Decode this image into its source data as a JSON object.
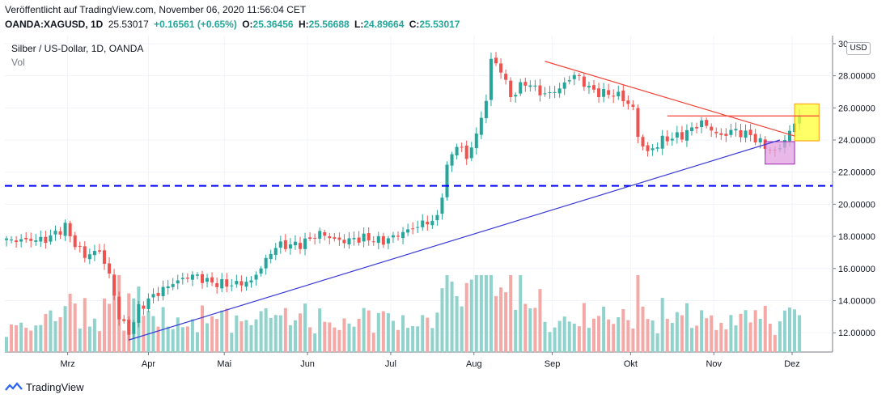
{
  "header": {
    "published": "Veröffentlicht auf TradingView.com, November 06, 2020 11:56:04 CET",
    "symbol": "OANDA:XAGUSD, 1D",
    "last": "25.53017",
    "change": "+0.16561 (+0.65%)",
    "open_label": "O:",
    "open": "25.36456",
    "high_label": "H:",
    "high": "25.56688",
    "low_label": "L:",
    "low": "24.89664",
    "close_label": "C:",
    "close": "25.53017"
  },
  "legend": {
    "title": "Silber / US-Dollar, 1D, OANDA",
    "volume": "Vol"
  },
  "currency_badge": "USD",
  "footer": {
    "brand": "TradingView"
  },
  "colors": {
    "up": "#26a69a",
    "down": "#ef5350",
    "up_vol": "#8fd3cc",
    "down_vol": "#f5a9a7",
    "support": "#0000ff",
    "trend_up": "#3a3ad6",
    "trend_down": "#f44336",
    "highlight_yellow": "#ffff33",
    "highlight_pink": "#e3a0e0"
  },
  "chart_data": {
    "type": "candlestick",
    "y_axis": {
      "min": 10.8,
      "max": 30.5,
      "ticks": [
        "12.00000",
        "14.00000",
        "16.00000",
        "18.00000",
        "20.00000",
        "22.00000",
        "24.00000",
        "26.00000",
        "28.00000",
        "30"
      ]
    },
    "x_axis": {
      "labels": [
        "Mrz",
        "Apr",
        "Mai",
        "Jun",
        "Jul",
        "Aug",
        "Sep",
        "Okt",
        "Nov",
        "Dez"
      ]
    },
    "price_waypoints": [
      [
        0,
        17.75
      ],
      [
        8,
        17.8
      ],
      [
        12,
        18.6
      ],
      [
        14,
        17.5
      ],
      [
        16,
        16.8
      ],
      [
        19,
        17.1
      ],
      [
        21,
        15.6
      ],
      [
        23,
        13.0
      ],
      [
        25,
        12.0
      ],
      [
        27,
        13.5
      ],
      [
        30,
        14.3
      ],
      [
        34,
        15.1
      ],
      [
        38,
        15.6
      ],
      [
        42,
        15.1
      ],
      [
        46,
        15.0
      ],
      [
        50,
        15.2
      ],
      [
        55,
        17.4
      ],
      [
        60,
        17.5
      ],
      [
        64,
        18.2
      ],
      [
        68,
        17.7
      ],
      [
        73,
        17.9
      ],
      [
        77,
        17.7
      ],
      [
        80,
        18.1
      ],
      [
        85,
        18.8
      ],
      [
        88,
        19.1
      ],
      [
        90,
        22.3
      ],
      [
        92,
        23.8
      ],
      [
        94,
        22.9
      ],
      [
        96,
        24.3
      ],
      [
        98,
        26.5
      ],
      [
        99,
        29.0
      ],
      [
        101,
        28.4
      ],
      [
        103,
        26.7
      ],
      [
        106,
        27.6
      ],
      [
        110,
        26.8
      ],
      [
        113,
        27.2
      ],
      [
        116,
        28.1
      ],
      [
        120,
        27.0
      ],
      [
        125,
        26.8
      ],
      [
        128,
        26.0
      ],
      [
        129,
        24.2
      ],
      [
        131,
        23.2
      ],
      [
        134,
        24.0
      ],
      [
        138,
        24.3
      ],
      [
        142,
        25.1
      ],
      [
        146,
        24.2
      ],
      [
        148,
        24.6
      ],
      [
        152,
        24.3
      ],
      [
        155,
        23.6
      ],
      [
        157,
        23.2
      ],
      [
        159,
        24.0
      ],
      [
        162,
        25.53
      ]
    ],
    "volume_range": [
      0.8,
      6.9
    ],
    "lines": [
      {
        "name": "support-horizontal",
        "style": "dashed",
        "y": 21.15
      },
      {
        "name": "rising-trendline",
        "from": [
          25,
          11.55
        ],
        "to": [
          158,
          24.0
        ]
      },
      {
        "name": "falling-trendline",
        "from": [
          110,
          28.9
        ],
        "to": [
          161,
          24.25
        ]
      },
      {
        "name": "breakout-level",
        "from": [
          135,
          25.5
        ],
        "to": [
          166,
          25.5
        ]
      }
    ],
    "boxes": [
      {
        "name": "pink-consolidation-box",
        "x": [
          155,
          161
        ],
        "y": [
          22.5,
          23.9
        ]
      },
      {
        "name": "yellow-breakout-box",
        "x": [
          161,
          166
        ],
        "y": [
          23.95,
          26.25
        ]
      }
    ]
  }
}
